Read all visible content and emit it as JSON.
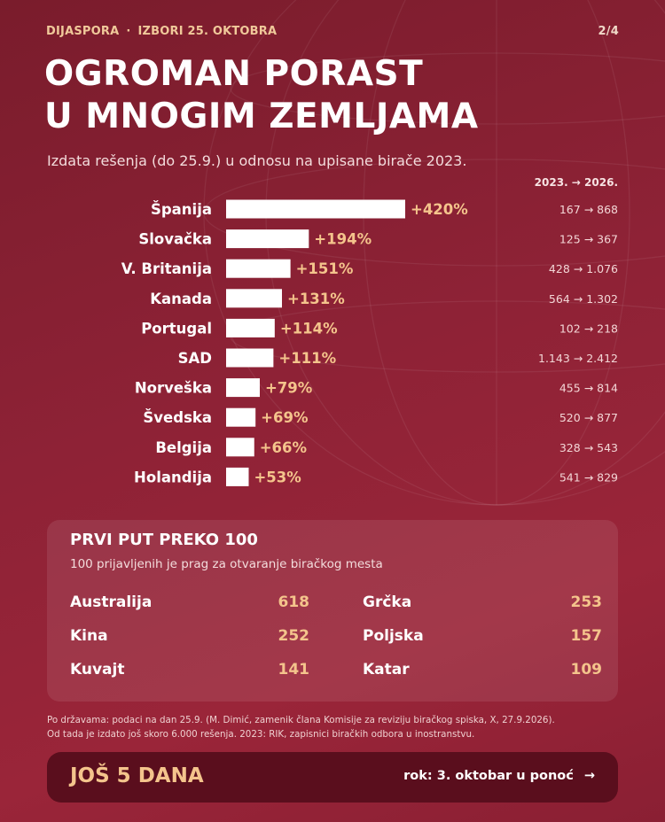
{
  "header": {
    "section": "DIJASPORA",
    "separator": "·",
    "event": "IZBORI 25. OKTOBRA",
    "page": "2/4"
  },
  "title_line1": "OGROMAN PORAST",
  "title_line2": "U MNOGIM ZEMLJAMA",
  "subtitle": "Izdata rešenja (do 25.9.) u odnosu na upisane birače 2023.",
  "column_header": "2023. → 2026.",
  "chart_data": {
    "type": "bar",
    "orientation": "horizontal",
    "title": "",
    "categories": [
      "Španija",
      "Slovačka",
      "V. Britanija",
      "Kanada",
      "Portugal",
      "SAD",
      "Norveška",
      "Švedska",
      "Belgija",
      "Holandija"
    ],
    "values": [
      420,
      194,
      151,
      131,
      114,
      111,
      79,
      69,
      66,
      53
    ],
    "value_labels": [
      "+420%",
      "+194%",
      "+151%",
      "+131%",
      "+114%",
      "+111%",
      "+79%",
      "+69%",
      "+66%",
      "+53%"
    ],
    "comparisons": [
      "167 → 868",
      "125 → 367",
      "428 → 1.076",
      "564 → 1.302",
      "102 → 218",
      "1.143 → 2.412",
      "455 → 814",
      "520 → 877",
      "328 → 543",
      "541 → 829"
    ],
    "xlim": [
      0,
      420
    ],
    "grid": false,
    "legend": "none",
    "colors": {
      "bar": "#ffffff",
      "value": "#f4c48c",
      "label": "#ffffff",
      "comparison": "#f3d6d6"
    }
  },
  "panel": {
    "title": "PRVI PUT PREKO 100",
    "subtitle": "100 prijavljenih je prag za otvaranje biračkog mesta",
    "items": [
      {
        "country": "Australija",
        "value": "618"
      },
      {
        "country": "Grčka",
        "value": "253"
      },
      {
        "country": "Kina",
        "value": "252"
      },
      {
        "country": "Poljska",
        "value": "157"
      },
      {
        "country": "Kuvajt",
        "value": "141"
      },
      {
        "country": "Katar",
        "value": "109"
      }
    ]
  },
  "footnote": {
    "line1": "Po državama: podaci na dan 25.9. (M. Dimić, zamenik člana Komisije za reviziju biračkog spiska, X, 27.9.2026).",
    "line2": "Od tada je izdato još skoro 6.000 rešenja. 2023: RIK, zapisnici biračkih odbora u inostranstvu."
  },
  "cta": {
    "label": "JOŠ 5 DANA",
    "deadline": "rok: 3. oktobar u ponoć",
    "arrow": "→"
  },
  "colors": {
    "background": "#8e2236",
    "accent": "#f4c48c",
    "cta_bg": "#5a0e1d"
  },
  "icons": {
    "decoration": "globe-icon",
    "arrow": "arrow-right-icon"
  }
}
